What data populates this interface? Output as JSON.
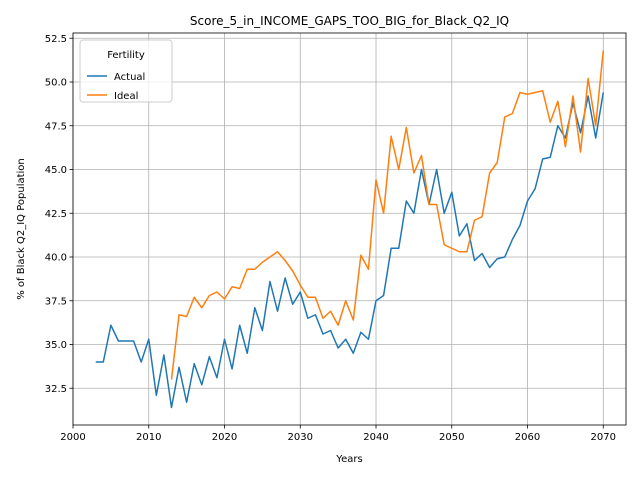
{
  "chart_data": {
    "type": "line",
    "title": "Score_5_in_INCOME_GAPS_TOO_BIG_for_Black_Q2_IQ",
    "xlabel": "Years",
    "ylabel": "% of Black Q2_IQ Population",
    "xlim": [
      2000,
      2073
    ],
    "ylim": [
      30.4,
      52.8
    ],
    "xticks": [
      2000,
      2010,
      2020,
      2030,
      2040,
      2050,
      2060,
      2070
    ],
    "yticks": [
      32.5,
      35.0,
      37.5,
      40.0,
      42.5,
      45.0,
      47.5,
      50.0,
      52.5
    ],
    "xtick_labels": [
      "2000",
      "2010",
      "2020",
      "2030",
      "2040",
      "2050",
      "2060",
      "2070"
    ],
    "ytick_labels": [
      "32.5",
      "35.0",
      "37.5",
      "40.0",
      "42.5",
      "45.0",
      "47.5",
      "50.0",
      "52.5"
    ],
    "grid": true,
    "legend": {
      "title": "Fertility",
      "position": "top-left"
    },
    "series": [
      {
        "name": "Actual",
        "color": "#1f77b4",
        "x": [
          2003,
          2004,
          2005,
          2006,
          2007,
          2008,
          2009,
          2010,
          2011,
          2012,
          2013,
          2014,
          2015,
          2016,
          2017,
          2018,
          2019,
          2020,
          2021,
          2022,
          2023,
          2024,
          2025,
          2026,
          2027,
          2028,
          2029,
          2030,
          2031,
          2032,
          2033,
          2034,
          2035,
          2036,
          2037,
          2038,
          2039,
          2040,
          2041,
          2042,
          2043,
          2044,
          2045,
          2046,
          2047,
          2048,
          2049,
          2050,
          2051,
          2052,
          2053,
          2054,
          2055,
          2056,
          2057,
          2058,
          2059,
          2060,
          2061,
          2062,
          2063,
          2064,
          2065,
          2066,
          2067,
          2068,
          2069,
          2070
        ],
        "y": [
          34.0,
          34.0,
          36.1,
          35.2,
          35.2,
          35.2,
          34.0,
          35.3,
          32.1,
          34.4,
          31.4,
          33.7,
          31.7,
          33.9,
          32.7,
          34.3,
          33.1,
          35.3,
          33.6,
          36.1,
          34.5,
          37.1,
          35.8,
          38.6,
          36.9,
          38.8,
          37.3,
          38.0,
          36.5,
          36.7,
          35.6,
          35.8,
          34.8,
          35.3,
          34.5,
          35.7,
          35.3,
          37.5,
          37.8,
          40.5,
          40.5,
          43.2,
          42.5,
          45.0,
          43.0,
          45.0,
          42.5,
          43.7,
          41.2,
          41.9,
          39.8,
          40.2,
          39.4,
          39.9,
          40.0,
          41.0,
          41.8,
          43.2,
          43.9,
          45.6,
          45.7,
          47.5,
          46.8,
          48.8,
          47.1,
          49.2,
          46.8,
          49.4
        ]
      },
      {
        "name": "Ideal",
        "color": "#ff7f0e",
        "x": [
          2013,
          2014,
          2015,
          2016,
          2017,
          2018,
          2019,
          2020,
          2021,
          2022,
          2023,
          2024,
          2025,
          2026,
          2027,
          2028,
          2029,
          2030,
          2031,
          2032,
          2033,
          2034,
          2035,
          2036,
          2037,
          2038,
          2039,
          2040,
          2041,
          2042,
          2043,
          2044,
          2045,
          2046,
          2047,
          2048,
          2049,
          2050,
          2051,
          2052,
          2053,
          2054,
          2055,
          2056,
          2057,
          2058,
          2059,
          2060,
          2061,
          2062,
          2063,
          2064,
          2065,
          2066,
          2067,
          2068,
          2069,
          2070
        ],
        "y": [
          33.0,
          36.7,
          36.6,
          37.7,
          37.1,
          37.8,
          38.0,
          37.6,
          38.3,
          38.2,
          39.3,
          39.3,
          39.7,
          40.0,
          40.3,
          39.8,
          39.2,
          38.4,
          37.7,
          37.7,
          36.5,
          36.9,
          36.1,
          37.5,
          36.4,
          40.1,
          39.3,
          44.4,
          42.5,
          46.9,
          45.0,
          47.4,
          44.8,
          45.8,
          43.0,
          43.0,
          40.7,
          40.5,
          40.3,
          40.3,
          42.1,
          42.3,
          44.8,
          45.4,
          48.0,
          48.2,
          49.4,
          49.3,
          49.4,
          49.5,
          47.7,
          48.9,
          46.3,
          49.2,
          46.0,
          50.2,
          47.5,
          51.8
        ]
      }
    ]
  }
}
